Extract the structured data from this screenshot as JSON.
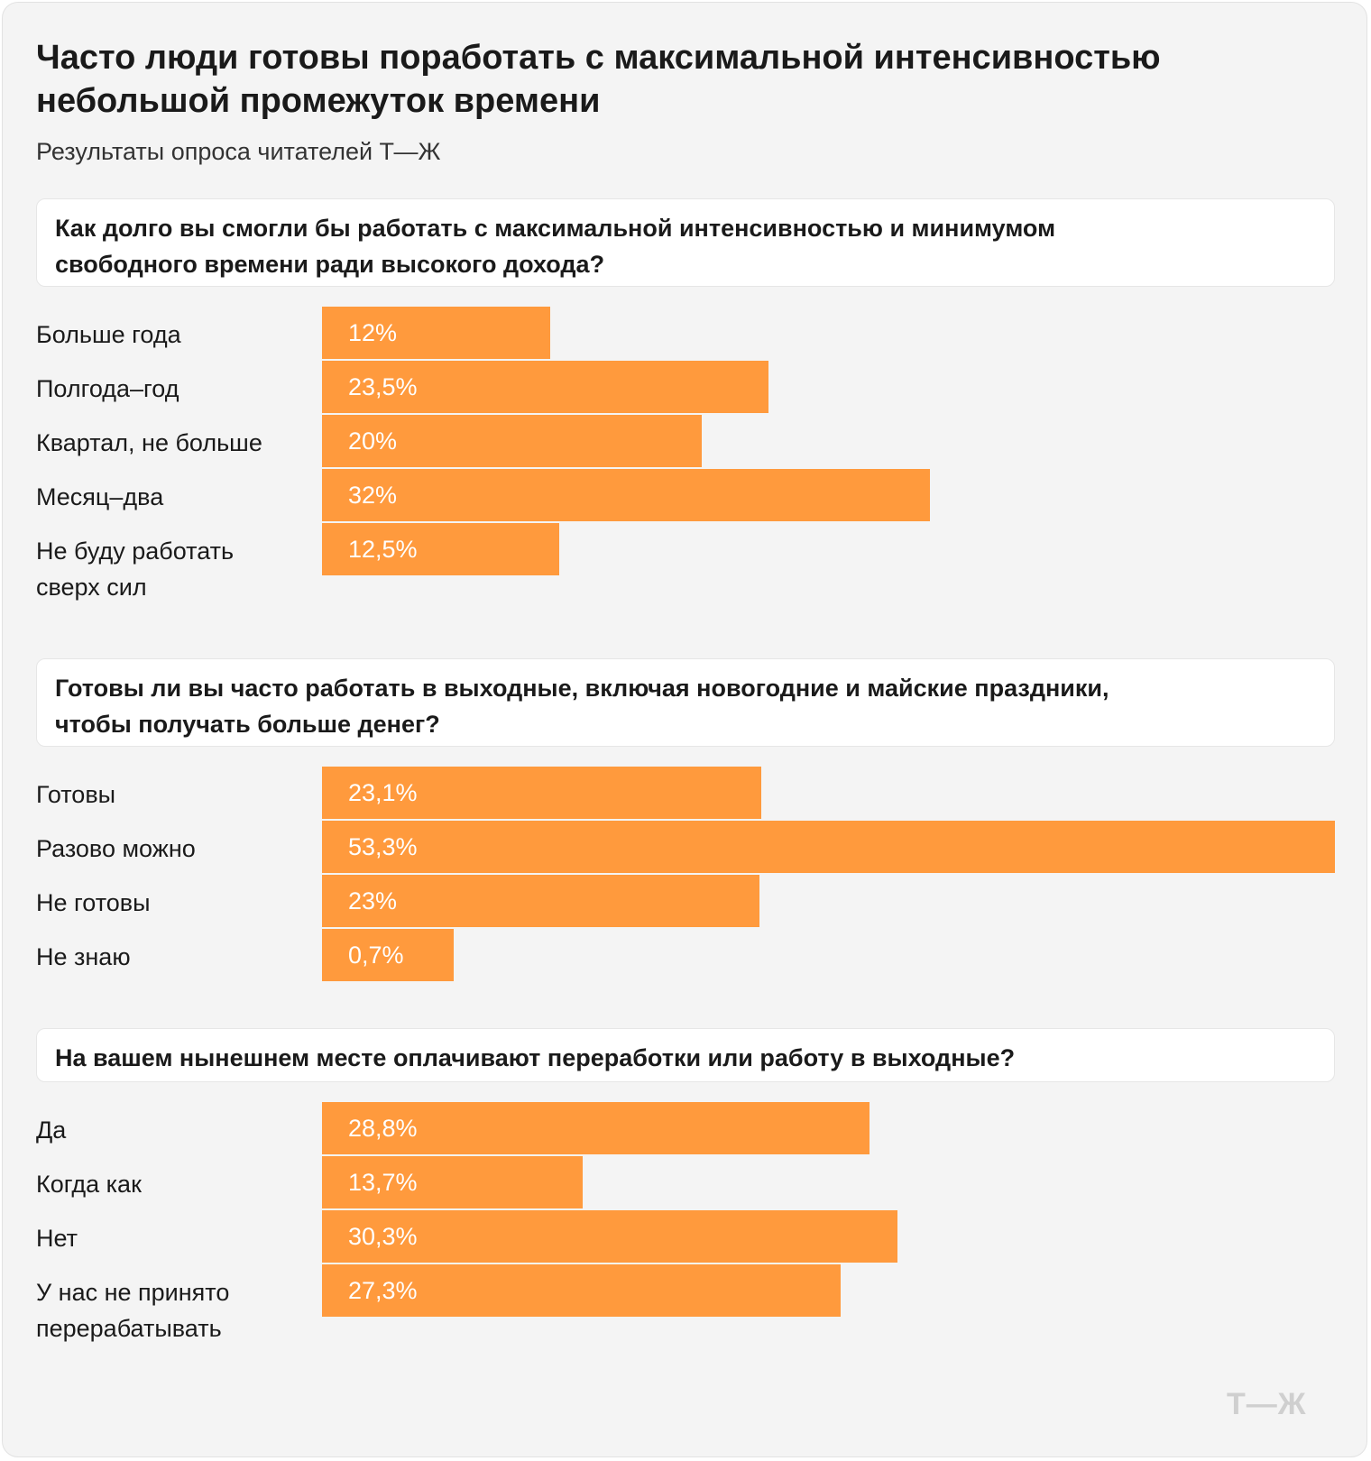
{
  "title": "Часто люди готовы поработать с максимальной интенсивностью небольшой промежуток времени",
  "subtitle": "Результаты опроса читателей Т—Ж",
  "logo": "Т—Ж",
  "colors": {
    "bar": "#ff9a3d",
    "background": "#f4f4f4",
    "question_box": "#ffffff"
  },
  "chart_data": [
    {
      "type": "bar",
      "orientation": "horizontal",
      "title": "Как долго вы смогли бы работать с максимальной интенсивностью и минимумом\nсвободного времени ради высокого дохода?",
      "categories": [
        "Больше года",
        "Полгода–год",
        "Квартал, не больше",
        "Месяц–два",
        "Не буду работать\nсверх сил"
      ],
      "values": [
        12,
        23.5,
        20,
        32,
        12.5
      ],
      "labels": [
        "12%",
        "23,5%",
        "20%",
        "32%",
        "12,5%"
      ]
    },
    {
      "type": "bar",
      "orientation": "horizontal",
      "title": "Готовы ли вы часто работать в выходные, включая новогодние и майские праздники,\nчтобы получать больше денег?",
      "categories": [
        "Готовы",
        "Разово можно",
        "Не готовы",
        "Не знаю"
      ],
      "values": [
        23.1,
        53.3,
        23,
        0.7
      ],
      "labels": [
        "23,1%",
        "53,3%",
        "23%",
        "0,7%"
      ]
    },
    {
      "type": "bar",
      "orientation": "horizontal",
      "title": "На вашем нынешнем месте оплачивают переработки или работу в выходные?",
      "categories": [
        "Да",
        "Когда как",
        "Нет",
        "У нас не принято\nперерабатывать"
      ],
      "values": [
        28.8,
        13.7,
        30.3,
        27.3
      ],
      "labels": [
        "28,8%",
        "13,7%",
        "30,3%",
        "27,3%"
      ]
    }
  ]
}
